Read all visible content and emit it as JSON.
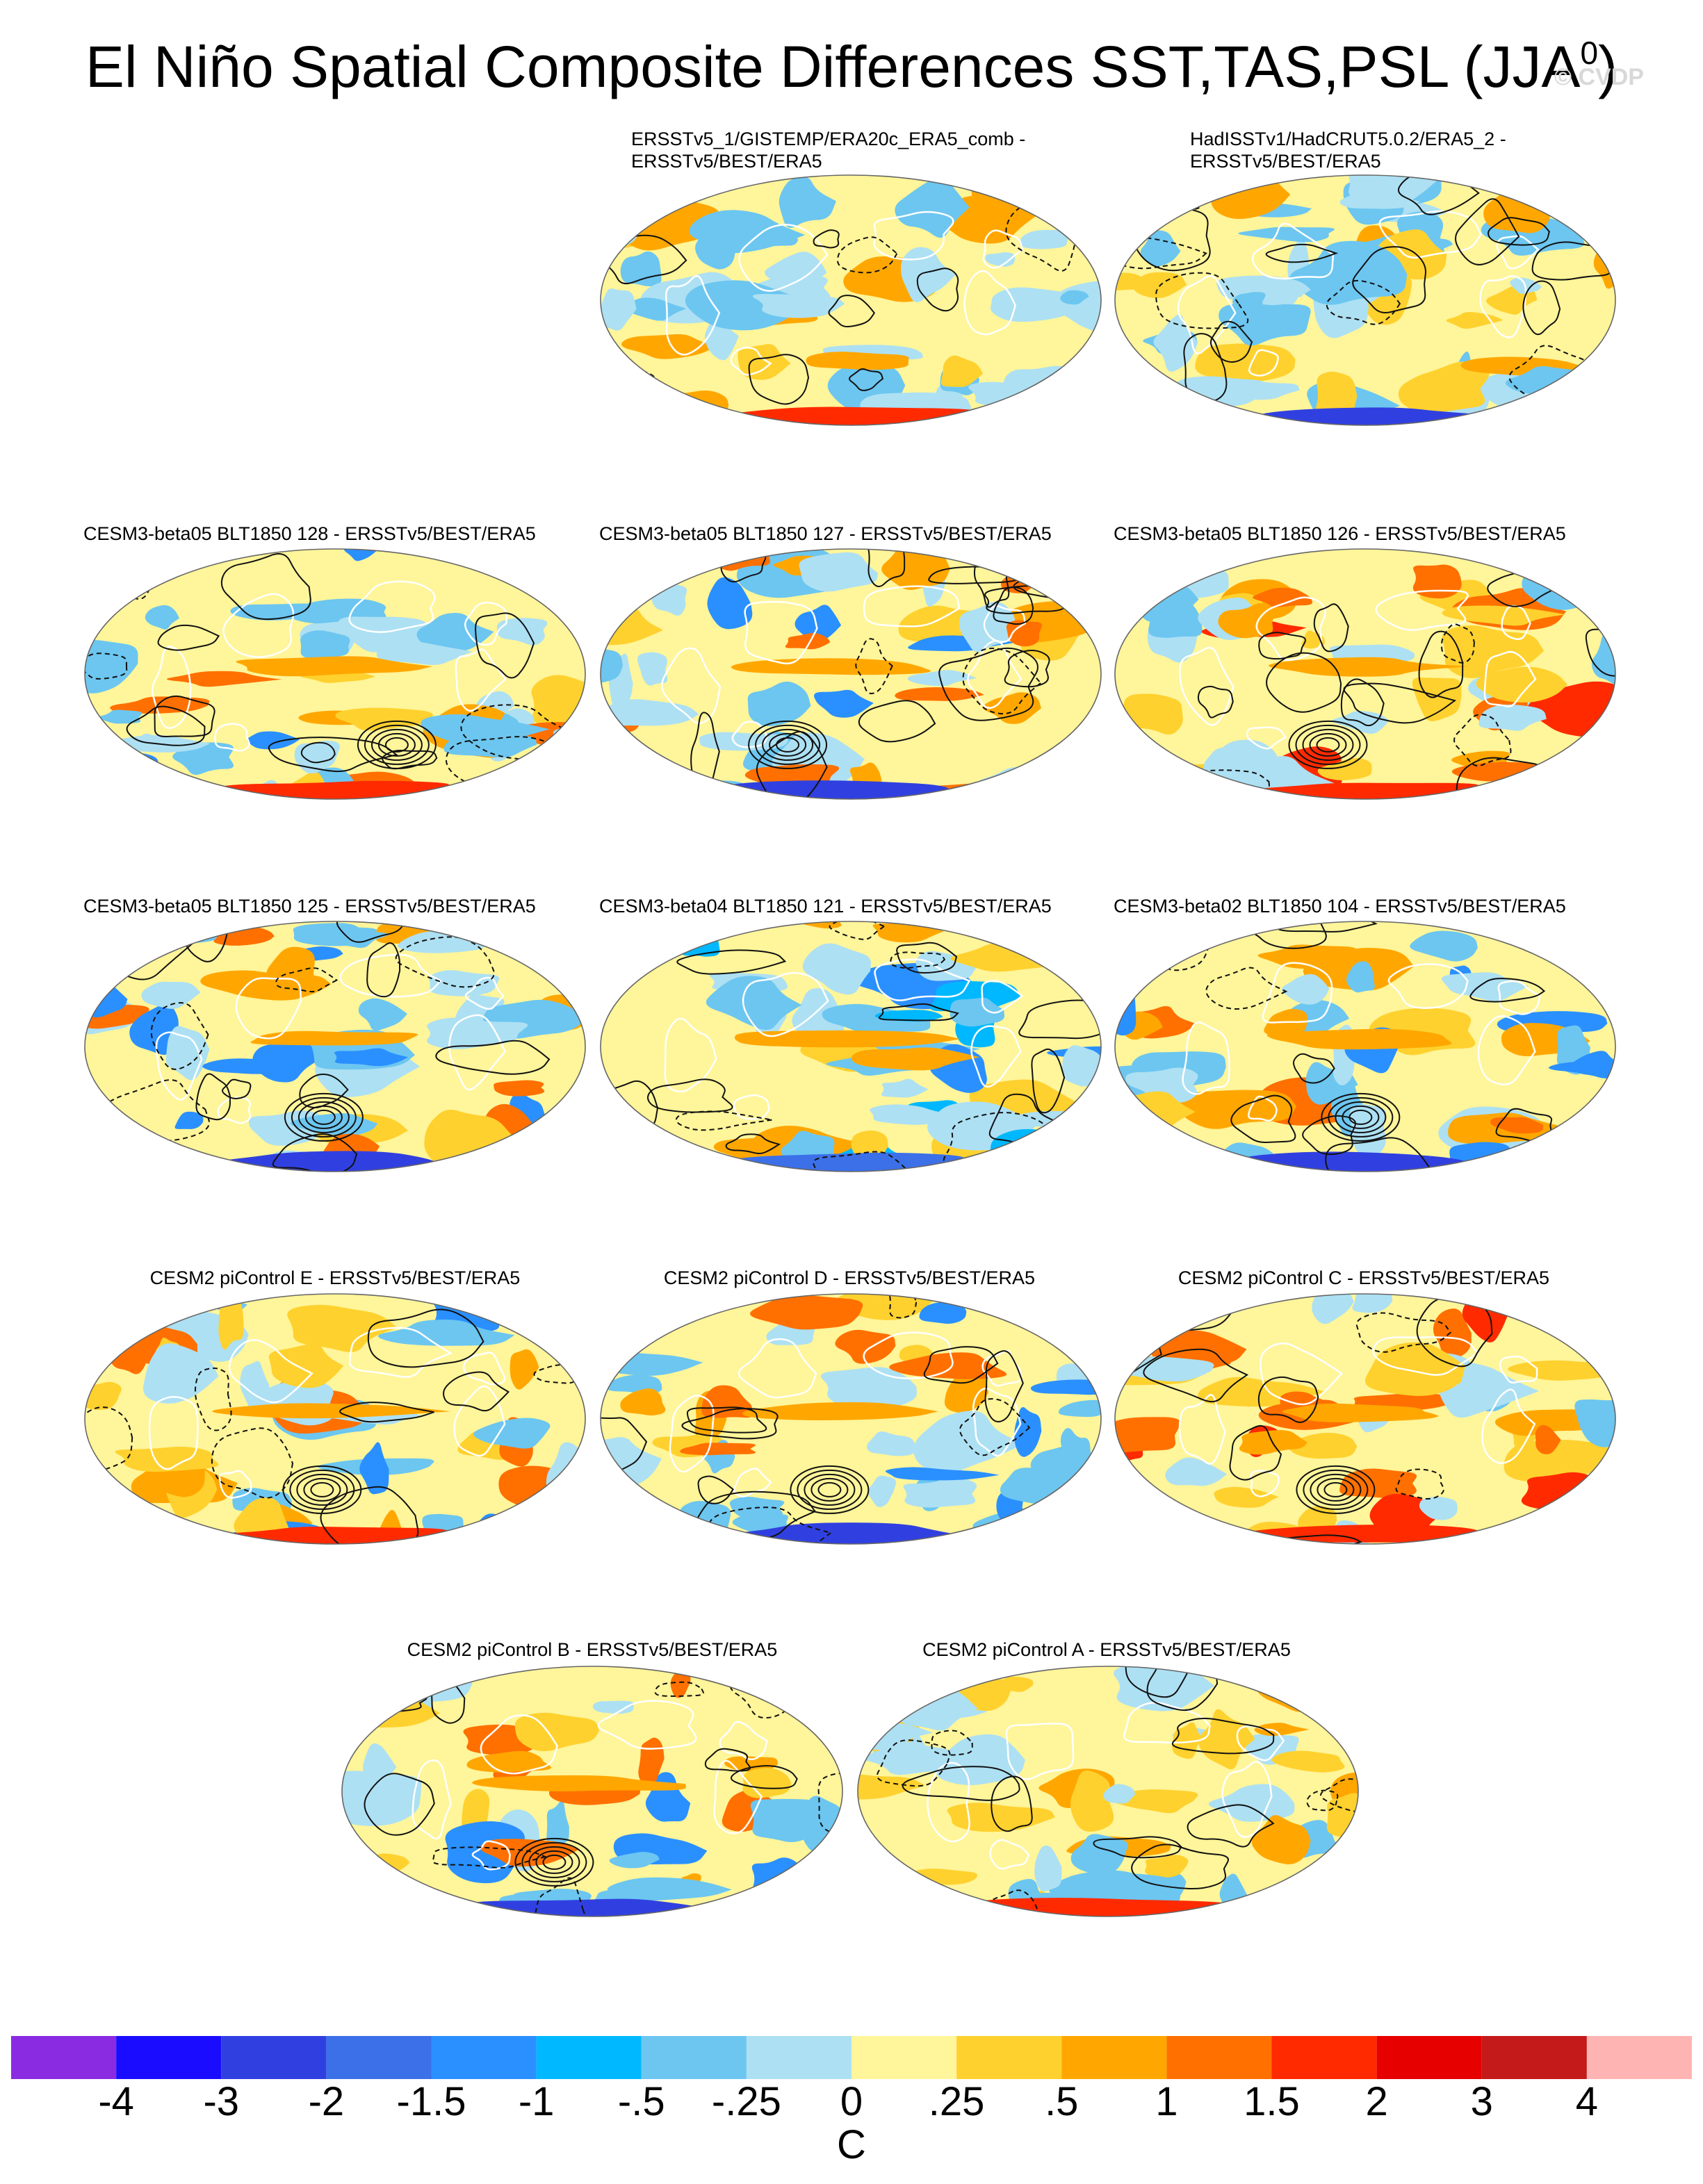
{
  "figure": {
    "title_main": "El Niño Spatial Composite Differences SST,TAS,PSL (JJA",
    "title_sup": "0",
    "title_close": ")",
    "credit": "© CVDP"
  },
  "panels": [
    {
      "id": "p1",
      "title_lines": [
        "ERSSTv5_1/GISTEMP/ERA20c_ERA5_comb -",
        "ERSSTv5/BEST/ERA5"
      ],
      "style": "neutral"
    },
    {
      "id": "p2",
      "title_lines": [
        "HadISSTv1/HadCRUT5.0.2/ERA5_2 -",
        "ERSSTv5/BEST/ERA5"
      ],
      "style": "neutral"
    },
    {
      "id": "p3",
      "title_lines": [
        "CESM3-beta05 BLT1850 128 - ERSSTv5/BEST/ERA5"
      ],
      "style": "model"
    },
    {
      "id": "p4",
      "title_lines": [
        "CESM3-beta05 BLT1850 127 - ERSSTv5/BEST/ERA5"
      ],
      "style": "model"
    },
    {
      "id": "p5",
      "title_lines": [
        "CESM3-beta05 BLT1850 126 - ERSSTv5/BEST/ERA5"
      ],
      "style": "warm"
    },
    {
      "id": "p6",
      "title_lines": [
        "CESM3-beta05 BLT1850 125 - ERSSTv5/BEST/ERA5"
      ],
      "style": "model"
    },
    {
      "id": "p7",
      "title_lines": [
        "CESM3-beta04 BLT1850 121 - ERSSTv5/BEST/ERA5"
      ],
      "style": "cool"
    },
    {
      "id": "p8",
      "title_lines": [
        "CESM3-beta02 BLT1850 104 - ERSSTv5/BEST/ERA5"
      ],
      "style": "model"
    },
    {
      "id": "p9",
      "title_lines": [
        "CESM2 piControl E - ERSSTv5/BEST/ERA5"
      ],
      "style": "model"
    },
    {
      "id": "p10",
      "title_lines": [
        "CESM2 piControl D - ERSSTv5/BEST/ERA5"
      ],
      "style": "model"
    },
    {
      "id": "p11",
      "title_lines": [
        "CESM2 piControl C - ERSSTv5/BEST/ERA5"
      ],
      "style": "warm"
    },
    {
      "id": "p12",
      "title_lines": [
        "CESM2 piControl B - ERSSTv5/BEST/ERA5"
      ],
      "style": "model"
    },
    {
      "id": "p13",
      "title_lines": [
        "CESM2 piControl A - ERSSTv5/BEST/ERA5"
      ],
      "style": "neutral"
    }
  ],
  "colorbar": {
    "colors": [
      "#8a2be2",
      "#1a0dff",
      "#3040e0",
      "#3c70e8",
      "#2a90ff",
      "#00b8ff",
      "#6cc6f0",
      "#ade0f3",
      "#fff59a",
      "#ffd12e",
      "#ffa700",
      "#ff7000",
      "#ff2a00",
      "#e60000",
      "#c41a1a",
      "#ffb4b4"
    ],
    "tick_labels": [
      "-4",
      "-3",
      "-2",
      "-1.5",
      "-1",
      "-.5",
      "-.25",
      "0",
      ".25",
      ".5",
      "1",
      "1.5",
      "2",
      "3",
      "4"
    ],
    "units": "C"
  },
  "chart_data": {
    "type": "heatmap",
    "projection": "Robinson (global map panels)",
    "title": "El Niño Spatial Composite Differences SST,TAS,PSL (JJA0)",
    "variables": [
      "SST",
      "TAS",
      "PSL"
    ],
    "shading": "temperature composite difference (C)",
    "contours": "PSL composite difference (solid positive, dashed negative)",
    "panels": [
      "ERSSTv5_1/GISTEMP/ERA20c_ERA5_comb - ERSSTv5/BEST/ERA5",
      "HadISSTv1/HadCRUT5.0.2/ERA5_2 - ERSSTv5/BEST/ERA5",
      "CESM3-beta05 BLT1850 128 - ERSSTv5/BEST/ERA5",
      "CESM3-beta05 BLT1850 127 - ERSSTv5/BEST/ERA5",
      "CESM3-beta05 BLT1850 126 - ERSSTv5/BEST/ERA5",
      "CESM3-beta05 BLT1850 125 - ERSSTv5/BEST/ERA5",
      "CESM3-beta04 BLT1850 121 - ERSSTv5/BEST/ERA5",
      "CESM3-beta02 BLT1850 104 - ERSSTv5/BEST/ERA5",
      "CESM2 piControl E - ERSSTv5/BEST/ERA5",
      "CESM2 piControl D - ERSSTv5/BEST/ERA5",
      "CESM2 piControl C - ERSSTv5/BEST/ERA5",
      "CESM2 piControl B - ERSSTv5/BEST/ERA5",
      "CESM2 piControl A - ERSSTv5/BEST/ERA5"
    ],
    "colorbar_levels": [
      -4,
      -3,
      -2,
      -1.5,
      -1,
      -0.5,
      -0.25,
      0,
      0.25,
      0.5,
      1,
      1.5,
      2,
      3,
      4
    ],
    "colorbar_units": "C"
  }
}
